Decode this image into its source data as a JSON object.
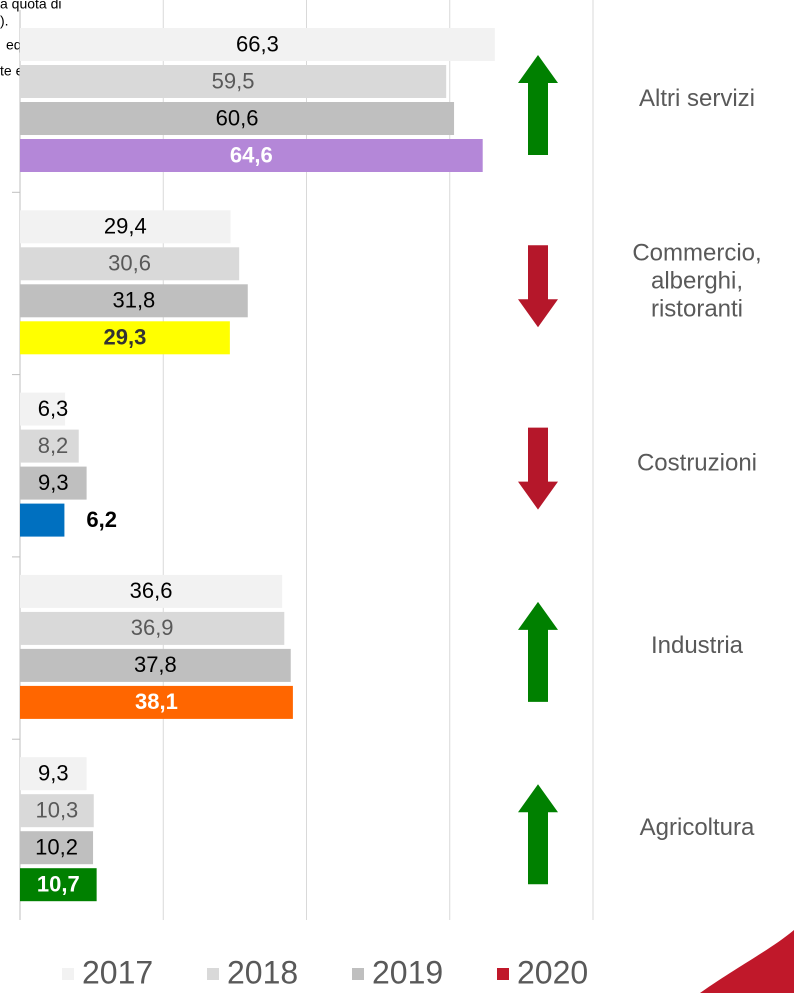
{
  "chart_data": {
    "type": "bar",
    "orientation": "horizontal",
    "annotations": [
      "a quota di",
      ").",
      "equamente",
      "te e quella"
    ],
    "categories": [
      "Altri servizi",
      "Commercio, alberghi, ristoranti",
      "Costruzioni",
      "Industria",
      "Agricoltura"
    ],
    "series": [
      {
        "name": "2017",
        "color": "#f2f2f2",
        "values": [
          66.3,
          29.4,
          6.3,
          36.6,
          9.3
        ],
        "value_labels": [
          "66,3",
          "29,4",
          "6,3",
          "36,6",
          "9,3"
        ]
      },
      {
        "name": "2018",
        "color": "#d9d9d9",
        "values": [
          59.5,
          30.6,
          8.2,
          36.9,
          10.3
        ],
        "value_labels": [
          "59,5",
          "30,6",
          "8,2",
          "36,9",
          "10,3"
        ]
      },
      {
        "name": "2019",
        "color": "#bfbfbf",
        "values": [
          60.6,
          31.8,
          9.3,
          37.8,
          10.2
        ],
        "value_labels": [
          "60,6",
          "31,8",
          "9,3",
          "37,8",
          "10,2"
        ]
      },
      {
        "name": "2020",
        "color": "#c0182a",
        "colors": [
          "#b487d8",
          "#ffff00",
          "#0070c0",
          "#ff6600",
          "#008000"
        ],
        "values": [
          64.6,
          29.3,
          6.2,
          38.1,
          10.7
        ],
        "value_labels": [
          "64,6",
          "29,3",
          "6,2",
          "38,1",
          "10,7"
        ]
      }
    ],
    "trend": [
      "up",
      "down",
      "down",
      "up",
      "up"
    ],
    "trend_colors": {
      "up": "#008000",
      "down": "#b5172a"
    },
    "xlim": [
      0,
      80
    ],
    "xticks": [
      0,
      20,
      40,
      60,
      80
    ],
    "grid": true,
    "legend": "bottom"
  }
}
